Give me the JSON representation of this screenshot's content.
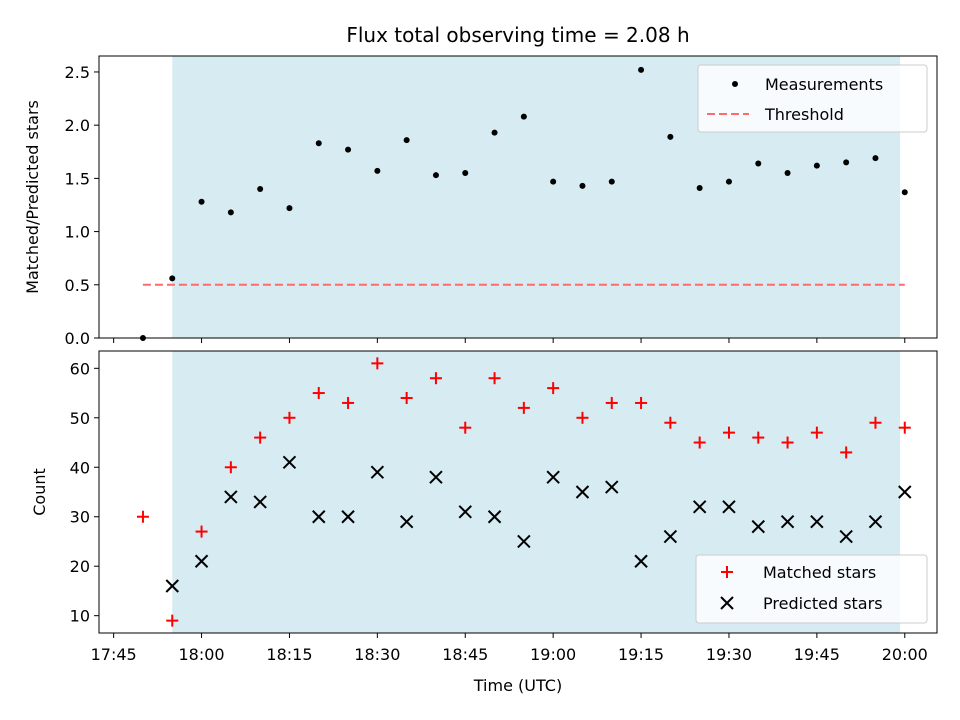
{
  "chart_data": {
    "title": "Flux total observing time = 2.08 h",
    "xlabel": "Time (UTC)",
    "x_tick_labels": [
      "17:45",
      "18:00",
      "18:15",
      "18:30",
      "18:45",
      "19:00",
      "19:15",
      "19:30",
      "19:45",
      "20:00"
    ],
    "x_tick_minutes": [
      0,
      15,
      30,
      45,
      60,
      75,
      90,
      105,
      120,
      135
    ],
    "xlim_minutes": [
      -2.5,
      140.5
    ],
    "shaded_span": {
      "start": "17:55",
      "end": "19:59",
      "start_min": 10,
      "end_min": 134.2,
      "color": "#add8e6"
    },
    "panels": [
      {
        "id": "ratio",
        "type": "scatter",
        "ylabel": "Matched/Predicted stars",
        "ylim": [
          0,
          2.65
        ],
        "y_ticks": [
          "0.0",
          "0.5",
          "1.0",
          "1.5",
          "2.0",
          "2.5"
        ],
        "y_tick_values": [
          0,
          0.5,
          1.0,
          1.5,
          2.0,
          2.5
        ],
        "legend_position": "top-right",
        "series": [
          {
            "name": "Measurements",
            "marker": "dot",
            "color": "#000000",
            "x_minutes": [
              5,
              10,
              15,
              20,
              25,
              30,
              35,
              40,
              45,
              50,
              55,
              60,
              65,
              70,
              75,
              80,
              85,
              90,
              95,
              100,
              105,
              110,
              115,
              120,
              125,
              130,
              135
            ],
            "values": [
              0.0,
              0.56,
              1.28,
              1.18,
              1.4,
              1.22,
              1.83,
              1.77,
              1.57,
              1.86,
              1.53,
              1.55,
              1.93,
              2.08,
              1.47,
              1.43,
              1.47,
              2.52,
              1.89,
              1.41,
              1.47,
              1.64,
              1.55,
              1.62,
              1.65,
              1.69,
              1.37
            ]
          }
        ],
        "threshold": {
          "name": "Threshold",
          "value": 0.5,
          "x_from_min": 5,
          "x_to_min": 135,
          "color": "#ff6b6b"
        }
      },
      {
        "id": "counts",
        "type": "scatter",
        "ylabel": "Count",
        "ylim": [
          6.5,
          63.5
        ],
        "y_ticks": [
          "10",
          "20",
          "30",
          "40",
          "50",
          "60"
        ],
        "y_tick_values": [
          10,
          20,
          30,
          40,
          50,
          60
        ],
        "legend_position": "bottom-right",
        "series": [
          {
            "name": "Matched stars",
            "marker": "plus",
            "color": "#ff0000",
            "x_minutes": [
              5,
              10,
              15,
              20,
              25,
              30,
              35,
              40,
              45,
              50,
              55,
              60,
              65,
              70,
              75,
              80,
              85,
              90,
              95,
              100,
              105,
              110,
              115,
              120,
              125,
              130,
              135
            ],
            "values": [
              30,
              9,
              27,
              40,
              46,
              50,
              55,
              53,
              61,
              54,
              58,
              48,
              58,
              52,
              56,
              50,
              53,
              53,
              49,
              45,
              47,
              46,
              45,
              47,
              43,
              49,
              48
            ]
          },
          {
            "name": "Predicted stars",
            "marker": "x",
            "color": "#000000",
            "x_minutes": [
              10,
              15,
              20,
              25,
              30,
              35,
              40,
              45,
              50,
              55,
              60,
              65,
              70,
              75,
              80,
              85,
              90,
              95,
              100,
              105,
              110,
              115,
              120,
              125,
              130,
              135
            ],
            "values": [
              16,
              21,
              34,
              33,
              41,
              30,
              30,
              39,
              29,
              38,
              31,
              30,
              25,
              38,
              35,
              36,
              21,
              26,
              32,
              32,
              28,
              29,
              29,
              26,
              29,
              35
            ]
          }
        ]
      }
    ]
  }
}
